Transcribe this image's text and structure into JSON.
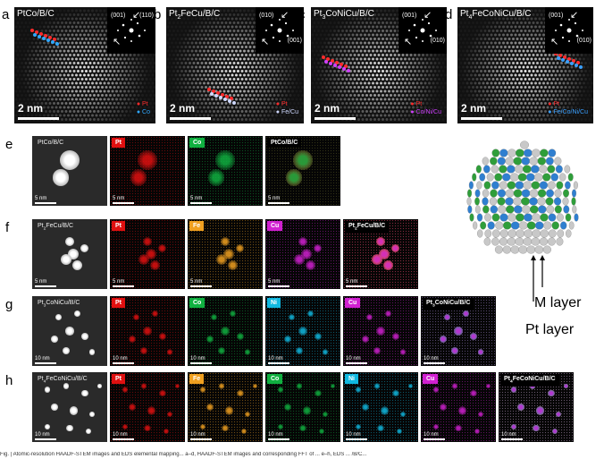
{
  "panels": {
    "a": {
      "label": "a",
      "sample": "PtCo/B/C",
      "fft": [
        "(001)",
        "(110)"
      ],
      "legend": [
        {
          "text": "Pt",
          "color": "#ff2b2b"
        },
        {
          "text": "Co",
          "color": "#2fa8ff"
        }
      ],
      "scale": "2 nm"
    },
    "b": {
      "label": "b",
      "sample": "Pt2FeCu/B/C",
      "fft": [
        "(010)",
        "(001)"
      ],
      "legend": [
        {
          "text": "Pt",
          "color": "#ff2b2b"
        },
        {
          "text": "Fe/Cu",
          "color": "#cfd8ff"
        }
      ],
      "scale": "2 nm"
    },
    "c": {
      "label": "c",
      "sample": "Pt3CoNiCu/B/C",
      "fft": [
        "(001)",
        "(010)"
      ],
      "legend": [
        {
          "text": "Pt",
          "color": "#ff2b2b"
        },
        {
          "text": "Co/Ni/Cu",
          "color": "#d040ff"
        }
      ],
      "scale": "2 nm"
    },
    "d": {
      "label": "d",
      "sample": "Pt4FeCoNiCu/B/C",
      "fft": [
        "(001)",
        "(010)"
      ],
      "legend": [
        {
          "text": "Pt",
          "color": "#ff2b2b"
        },
        {
          "text": "Fe/Co/Ni/Cu",
          "color": "#3aa0ff"
        }
      ],
      "scale": "2 nm"
    }
  },
  "rows": {
    "e": {
      "label": "e",
      "sample": "PtCo/B/C",
      "scale": "5 nm",
      "maps": [
        {
          "tag": "Pt",
          "color": "#e01010"
        },
        {
          "tag": "Co",
          "color": "#10b040"
        }
      ],
      "overlay": "PtCo/B/C"
    },
    "f": {
      "label": "f",
      "sample": "Pt2FeCu/B/C",
      "scale": "5 nm",
      "maps": [
        {
          "tag": "Pt",
          "color": "#e01010"
        },
        {
          "tag": "Fe",
          "color": "#f0a020"
        },
        {
          "tag": "Cu",
          "color": "#d020d0"
        }
      ],
      "overlay": "Pt2FeCu/B/C"
    },
    "g": {
      "label": "g",
      "sample": "Pt3CoNiCu/B/C",
      "scale": "10 nm",
      "maps": [
        {
          "tag": "Pt",
          "color": "#e01010"
        },
        {
          "tag": "Co",
          "color": "#10b040"
        },
        {
          "tag": "Ni",
          "color": "#10b8e0"
        },
        {
          "tag": "Cu",
          "color": "#d020d0"
        }
      ],
      "overlay": "Pt3CoNiCu/B/C"
    },
    "h": {
      "label": "h",
      "sample": "Pt4FeCoNiCu/B/C",
      "scale": "10 nm",
      "maps": [
        {
          "tag": "Pt",
          "color": "#e01010"
        },
        {
          "tag": "Fe",
          "color": "#f0a020"
        },
        {
          "tag": "Co",
          "color": "#10b040"
        },
        {
          "tag": "Ni",
          "color": "#10b8e0"
        },
        {
          "tag": "Cu",
          "color": "#d020d0"
        }
      ],
      "overlay": "Pt4FeCoNiCu/B/C"
    }
  },
  "model": {
    "m_layer": "M layer",
    "pt_layer": "Pt layer",
    "colors": [
      "#c8c8c8",
      "#e8862a",
      "#2f9e3a",
      "#2f7fd0"
    ]
  },
  "caption": "Fig. | Atomic-resolution HAADF-STEM images and EDS elemental mapping... a–d, HAADF-STEM images and corresponding FFT of ... e–h, EDS ... /B/C..."
}
